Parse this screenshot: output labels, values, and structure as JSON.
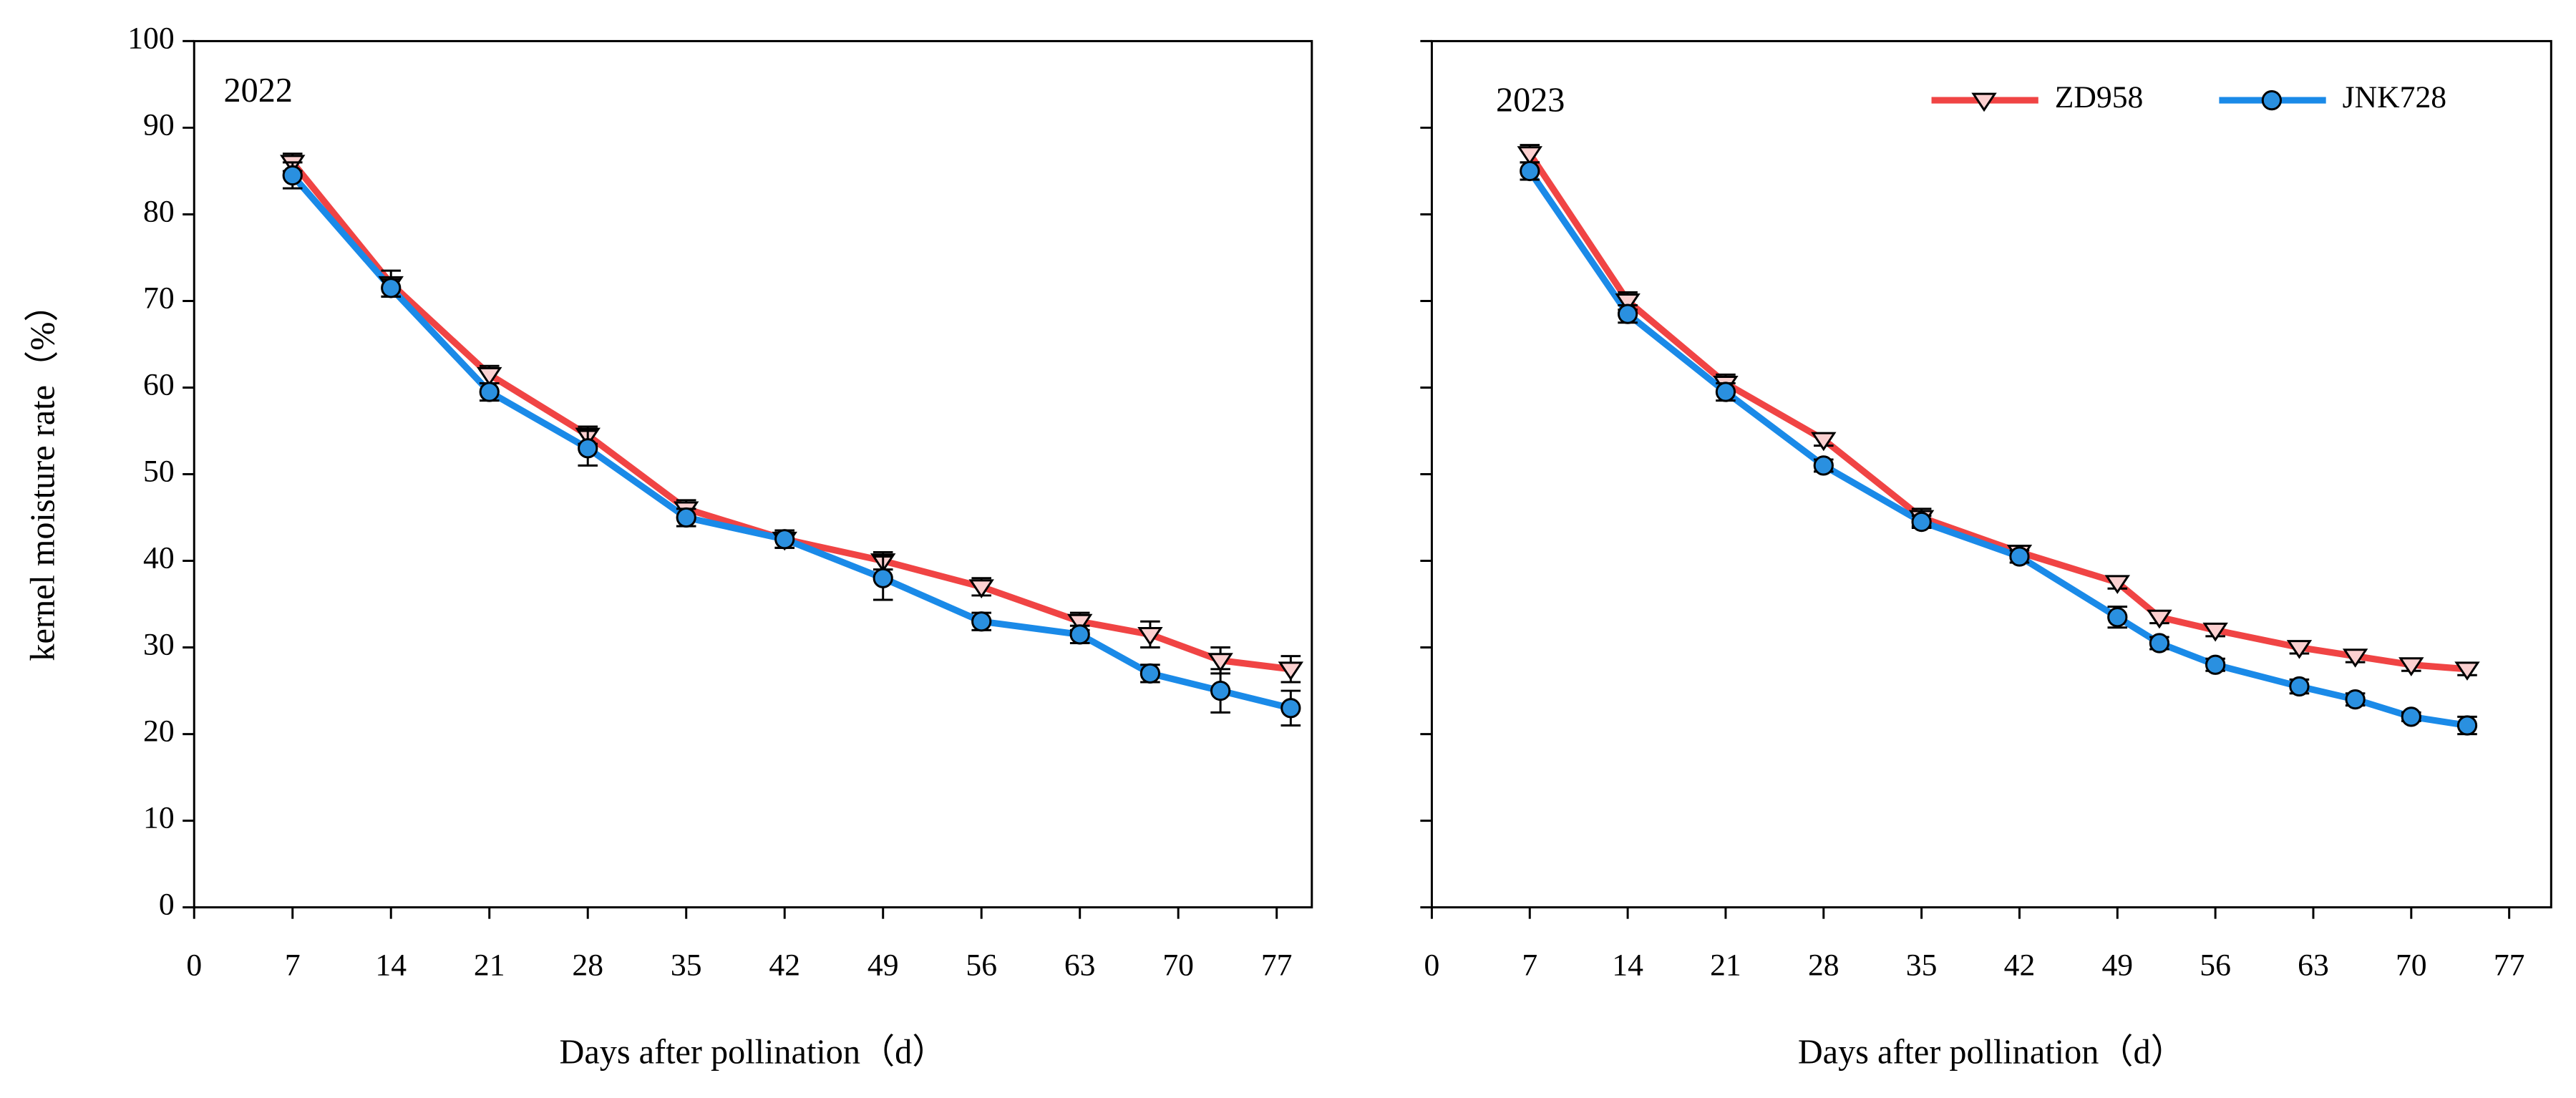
{
  "chart_data": [
    {
      "type": "line",
      "annotation": "2022",
      "x_label": "Days after pollination（d）",
      "y_label": "kernel moisture rate（%）",
      "xlim": [
        0,
        79.5
      ],
      "xticks": [
        0,
        7,
        14,
        21,
        28,
        35,
        42,
        49,
        56,
        63,
        70,
        77
      ],
      "ylim": [
        0,
        100
      ],
      "yticks": [
        0,
        10,
        20,
        30,
        40,
        50,
        60,
        70,
        80,
        90,
        100
      ],
      "show_ytick_labels": true,
      "legend": false,
      "x": [
        7,
        14,
        21,
        28,
        35,
        42,
        49,
        56,
        63,
        68,
        73,
        78
      ],
      "series": [
        {
          "name": "ZD958",
          "color": "#f04444",
          "marker": "triangle-down",
          "marker_color": "#fbd0d0",
          "values": [
            86,
            72,
            61.5,
            54.5,
            46,
            42.5,
            40,
            37,
            33,
            31.5,
            28.5,
            27.5
          ],
          "errors": [
            1,
            1.5,
            1,
            1,
            1,
            1,
            1,
            1,
            1,
            1.5,
            1.5,
            1.5
          ]
        },
        {
          "name": "JNK728",
          "color": "#1a8ae8",
          "marker": "circle",
          "marker_color": "#2a90e0",
          "values": [
            84.5,
            71.5,
            59.5,
            53,
            45,
            42.5,
            38,
            33,
            31.5,
            27,
            25,
            23
          ],
          "errors": [
            1.5,
            1,
            1,
            2,
            1,
            1,
            2.5,
            1,
            1,
            1,
            2.5,
            2
          ]
        }
      ]
    },
    {
      "type": "line",
      "annotation": "2023",
      "x_label": "Days after pollination（d）",
      "xlim": [
        0,
        80
      ],
      "xticks": [
        0,
        7,
        14,
        21,
        28,
        35,
        42,
        49,
        56,
        63,
        70,
        77
      ],
      "ylim": [
        0,
        100
      ],
      "yticks": [
        0,
        10,
        20,
        30,
        40,
        50,
        60,
        70,
        80,
        90,
        100
      ],
      "show_ytick_labels": false,
      "legend": true,
      "x": [
        7,
        14,
        21,
        28,
        35,
        42,
        49,
        52,
        56,
        62,
        66,
        70,
        74
      ],
      "series": [
        {
          "name": "ZD958",
          "color": "#f04444",
          "marker": "triangle-down",
          "marker_color": "#fbd0d0",
          "values": [
            87,
            70,
            60.5,
            54,
            45,
            41,
            37.5,
            33.5,
            32,
            30,
            29,
            28,
            27.5
          ],
          "errors": [
            1,
            1,
            1,
            0.7,
            1,
            0.7,
            0.7,
            0.7,
            0.7,
            0.7,
            0.7,
            0.7,
            0.7
          ]
        },
        {
          "name": "JNK728",
          "color": "#1a8ae8",
          "marker": "circle",
          "marker_color": "#2a90e0",
          "values": [
            85,
            68.5,
            59.5,
            51,
            44.5,
            40.5,
            33.5,
            30.5,
            28,
            25.5,
            24,
            22,
            21
          ],
          "errors": [
            1,
            1,
            1,
            0.7,
            0.7,
            0.7,
            1.2,
            0.7,
            0.7,
            0.8,
            0.7,
            0.5,
            1
          ]
        }
      ]
    }
  ]
}
